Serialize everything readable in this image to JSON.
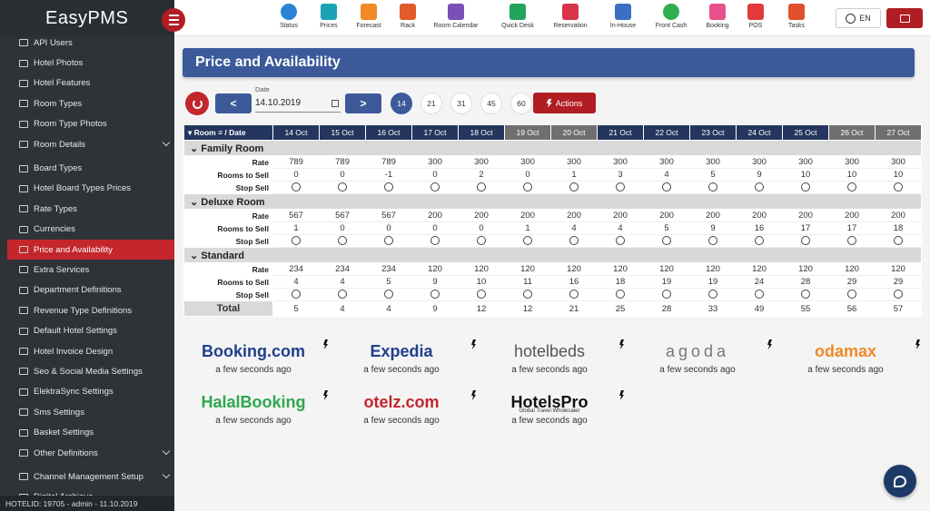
{
  "brand": "EasyPMS",
  "footer": "HOTELID: 19705 - admin - 11.10.2019",
  "topnav": [
    {
      "label": "Status",
      "icon": "pie-chart-icon",
      "color": "#2b83d6"
    },
    {
      "label": "Prices",
      "icon": "price-tag-icon",
      "color": "#1ba3b5"
    },
    {
      "label": "Forecast",
      "icon": "bar-chart-icon",
      "color": "#f08a24"
    },
    {
      "label": "Rack",
      "icon": "grid-icon",
      "color": "#e25b2a"
    },
    {
      "label": "Room Calendar",
      "icon": "calendar-icon",
      "color": "#7a4fb6"
    },
    {
      "label": "Quick Desk",
      "icon": "laptop-icon",
      "color": "#22a55a"
    },
    {
      "label": "Reservation",
      "icon": "plane-icon",
      "color": "#d9344a"
    },
    {
      "label": "In-House",
      "icon": "bed-icon",
      "color": "#3b6fc4"
    },
    {
      "label": "Front Cash",
      "icon": "dollar-icon",
      "color": "#2fae4e"
    },
    {
      "label": "Booking",
      "icon": "hand-icon",
      "color": "#e6518b"
    },
    {
      "label": "POS",
      "icon": "cart-icon",
      "color": "#e23a3a"
    },
    {
      "label": "Tasks",
      "icon": "alarm-icon",
      "color": "#e0502c"
    }
  ],
  "lang": "EN",
  "sidebar": [
    {
      "label": "API Users",
      "chevron": false
    },
    {
      "label": "Hotel Photos",
      "chevron": false
    },
    {
      "label": "Hotel Features",
      "chevron": false
    },
    {
      "label": "Room Types",
      "chevron": false
    },
    {
      "label": "Room Type Photos",
      "chevron": false
    },
    {
      "label": "Room Details",
      "chevron": true
    },
    {
      "label": "Board Types",
      "chevron": false
    },
    {
      "label": "Hotel Board Types Prices",
      "chevron": false
    },
    {
      "label": "Rate Types",
      "chevron": false
    },
    {
      "label": "Currencies",
      "chevron": false
    },
    {
      "label": "Price and Availability",
      "chevron": false,
      "active": true
    },
    {
      "label": "Extra Services",
      "chevron": false
    },
    {
      "label": "Department Definitions",
      "chevron": false
    },
    {
      "label": "Revenue Type Definitions",
      "chevron": false
    },
    {
      "label": "Default Hotel Settings",
      "chevron": false
    },
    {
      "label": "Hotel Invoice Design",
      "chevron": false
    },
    {
      "label": "Seo & Social Media Settings",
      "chevron": false
    },
    {
      "label": "ElektraSync Settings",
      "chevron": false
    },
    {
      "label": "Sms Settings",
      "chevron": false
    },
    {
      "label": "Basket Settings",
      "chevron": false
    },
    {
      "label": "Other Definitions",
      "chevron": true
    },
    {
      "label": "Channel Management Setup",
      "chevron": true
    },
    {
      "label": "Digital Archieve",
      "chevron": false
    }
  ],
  "page_title": "Price and Availability",
  "controls": {
    "prev": "<",
    "next": ">",
    "date_label": "Date",
    "date_value": "14.10.2019",
    "day_options": [
      "14",
      "21",
      "31",
      "45",
      "60"
    ],
    "active_day": "14",
    "actions_label": "Actions"
  },
  "grid": {
    "corner_label": "Room",
    "corner_date": "/ Date",
    "dates": [
      {
        "label": "14 Oct",
        "weekend": false
      },
      {
        "label": "15 Oct",
        "weekend": false
      },
      {
        "label": "16 Oct",
        "weekend": false
      },
      {
        "label": "17 Oct",
        "weekend": false
      },
      {
        "label": "18 Oct",
        "weekend": false
      },
      {
        "label": "19 Oct",
        "weekend": true
      },
      {
        "label": "20 Oct",
        "weekend": true
      },
      {
        "label": "21 Oct",
        "weekend": false
      },
      {
        "label": "22 Oct",
        "weekend": false
      },
      {
        "label": "23 Oct",
        "weekend": false
      },
      {
        "label": "24 Oct",
        "weekend": false
      },
      {
        "label": "25 Oct",
        "weekend": false
      },
      {
        "label": "26 Oct",
        "weekend": true
      },
      {
        "label": "27 Oct",
        "weekend": true
      }
    ],
    "row_labels": {
      "rate": "Rate",
      "rooms": "Rooms to Sell",
      "stop": "Stop Sell"
    },
    "rooms": [
      {
        "name": "Family Room",
        "rate": [
          "789",
          "789",
          "789",
          "300",
          "300",
          "300",
          "300",
          "300",
          "300",
          "300",
          "300",
          "300",
          "300",
          "300"
        ],
        "rooms": [
          "0",
          "0",
          "-1",
          "0",
          "2",
          "0",
          "1",
          "3",
          "4",
          "5",
          "9",
          "10",
          "10",
          "10"
        ]
      },
      {
        "name": "Deluxe Room",
        "rate": [
          "567",
          "567",
          "567",
          "200",
          "200",
          "200",
          "200",
          "200",
          "200",
          "200",
          "200",
          "200",
          "200",
          "200"
        ],
        "rooms": [
          "1",
          "0",
          "0",
          "0",
          "0",
          "1",
          "4",
          "4",
          "5",
          "9",
          "16",
          "17",
          "17",
          "18"
        ]
      },
      {
        "name": "Standard",
        "rate": [
          "234",
          "234",
          "234",
          "120",
          "120",
          "120",
          "120",
          "120",
          "120",
          "120",
          "120",
          "120",
          "120",
          "120"
        ],
        "rooms": [
          "4",
          "4",
          "5",
          "9",
          "10",
          "11",
          "16",
          "18",
          "19",
          "19",
          "24",
          "28",
          "29",
          "29"
        ]
      }
    ],
    "total_label": "Total",
    "totals": [
      "5",
      "4",
      "4",
      "9",
      "12",
      "12",
      "21",
      "25",
      "28",
      "33",
      "49",
      "55",
      "56",
      "57"
    ]
  },
  "channels": [
    {
      "name": "Booking.com",
      "time": "a few seconds ago",
      "color": "#1f3f8c"
    },
    {
      "name": "Expedia",
      "time": "a few seconds ago",
      "color": "#1f3f8c"
    },
    {
      "name": "hotelbeds",
      "time": "a few seconds ago",
      "color": "#555555"
    },
    {
      "name": "agoda",
      "time": "a few seconds ago",
      "color": "#777777"
    },
    {
      "name": "odamax",
      "time": "a few seconds ago",
      "color": "#f08a24"
    },
    {
      "name": "HalalBooking",
      "time": "a few seconds ago",
      "color": "#2fa84f"
    },
    {
      "name": "otelz.com",
      "time": "a few seconds ago",
      "color": "#c3262b"
    },
    {
      "name": "HotelsPro",
      "time": "a few seconds ago",
      "color": "#111111"
    }
  ],
  "channel_sub": {
    "HotelsPro": "Global Travel Wholesaler"
  }
}
